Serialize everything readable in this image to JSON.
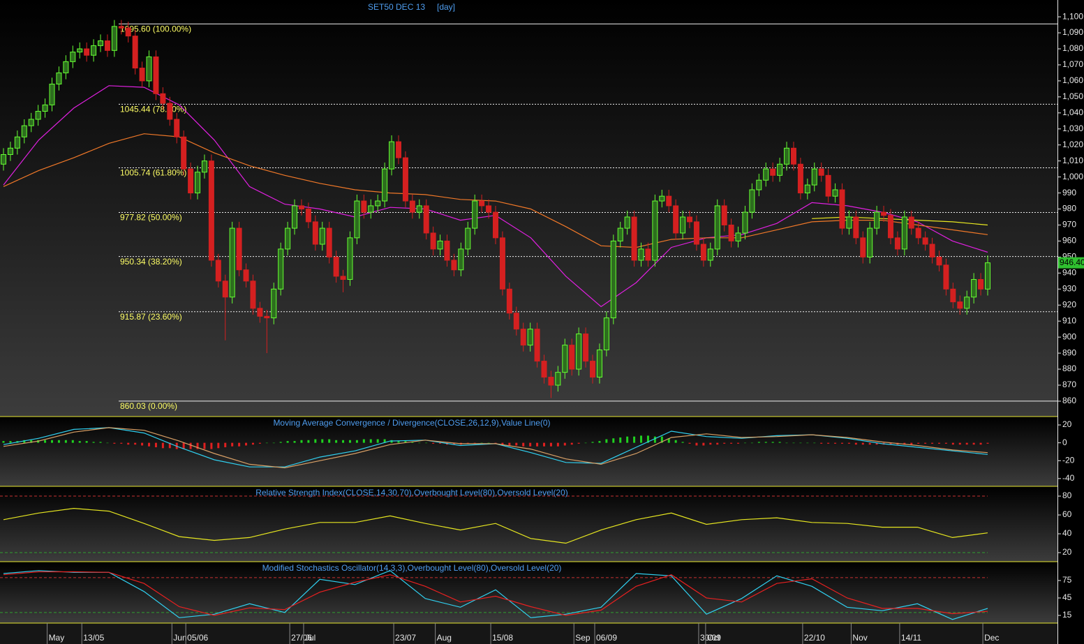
{
  "chart_data": [
    {
      "type": "candlestick",
      "title": "SET50 DEC 13",
      "interval": "[day]",
      "categories": [
        null,
        null,
        null,
        null,
        null,
        null,
        "May",
        null,
        null,
        null,
        null,
        "13/05",
        null,
        null,
        null,
        null,
        null,
        null,
        null,
        null,
        null,
        null,
        null,
        null,
        "Jun",
        null,
        "05/06",
        null,
        null,
        null,
        null,
        null,
        null,
        null,
        null,
        null,
        null,
        null,
        null,
        null,
        null,
        "27/06",
        null,
        "Jul",
        null,
        null,
        null,
        null,
        null,
        null,
        null,
        null,
        null,
        null,
        null,
        null,
        "23/07",
        null,
        null,
        null,
        null,
        null,
        "Aug",
        null,
        null,
        null,
        null,
        null,
        null,
        null,
        "15/08",
        null,
        null,
        null,
        null,
        null,
        null,
        null,
        null,
        null,
        null,
        null,
        "Sep",
        null,
        null,
        "06/09",
        null,
        null,
        null,
        null,
        null,
        null,
        null,
        null,
        null,
        null,
        null,
        null,
        null,
        null,
        "30/09",
        "Oct",
        null,
        null,
        null,
        null,
        null,
        null,
        null,
        null,
        null,
        null,
        null,
        null,
        null,
        "22/10",
        null,
        null,
        null,
        null,
        null,
        null,
        "Nov",
        null,
        null,
        null,
        null,
        null,
        null,
        "14/11",
        null,
        null,
        null,
        null,
        null,
        null,
        null,
        null,
        null,
        null,
        null,
        "Dec",
        null
      ],
      "open": [
        1008,
        1014,
        1018,
        1025,
        1032,
        1036,
        1041,
        1045,
        1058,
        1065,
        1072,
        1078,
        1080,
        1076,
        1082,
        1085,
        1079,
        1094,
        1093,
        1088,
        1068,
        1060,
        1075,
        1052,
        1046,
        1036,
        1025,
        1005,
        990,
        1003,
        1010,
        948,
        935,
        925,
        968,
        942,
        935,
        918,
        913,
        912,
        930,
        955,
        968,
        982,
        980,
        972,
        958,
        968,
        950,
        938,
        936,
        962,
        985,
        978,
        982,
        985,
        1005,
        1022,
        1012,
        985,
        978,
        982,
        965,
        955,
        960,
        948,
        942,
        955,
        968,
        985,
        982,
        978,
        962,
        930,
        915,
        905,
        895,
        905,
        885,
        875,
        870,
        878,
        895,
        880,
        902,
        885,
        875,
        892,
        912,
        960,
        968,
        975,
        948,
        955,
        948,
        985,
        988,
        982,
        965,
        975,
        972,
        958,
        948,
        955,
        982,
        970,
        960,
        965,
        978,
        992,
        998,
        1005,
        1001,
        1008,
        1018,
        1008,
        990,
        995,
        1005,
        1001,
        988,
        992,
        968,
        975,
        962,
        950,
        968,
        978,
        976,
        962,
        955,
        975,
        968,
        962,
        958,
        950,
        945,
        930,
        922,
        918,
        925,
        936,
        930
      ],
      "high": [
        1018,
        1022,
        1029,
        1036,
        1040,
        1045,
        1049,
        1062,
        1069,
        1076,
        1082,
        1084,
        1084,
        1086,
        1089,
        1089,
        1098,
        1098,
        1097,
        1092,
        1072,
        1079,
        1079,
        1056,
        1050,
        1040,
        1029,
        1009,
        1007,
        1014,
        1014,
        952,
        939,
        972,
        972,
        946,
        939,
        922,
        917,
        934,
        959,
        972,
        986,
        986,
        984,
        976,
        972,
        972,
        954,
        942,
        966,
        989,
        989,
        986,
        989,
        1009,
        1026,
        1026,
        1016,
        989,
        986,
        986,
        969,
        964,
        964,
        952,
        959,
        972,
        989,
        989,
        986,
        982,
        966,
        934,
        919,
        909,
        909,
        909,
        889,
        879,
        882,
        899,
        899,
        906,
        906,
        889,
        896,
        916,
        964,
        972,
        979,
        979,
        959,
        959,
        989,
        992,
        992,
        986,
        979,
        979,
        976,
        962,
        959,
        986,
        986,
        974,
        969,
        982,
        996,
        1002,
        1009,
        1009,
        1012,
        1022,
        1022,
        1012,
        999,
        1009,
        1009,
        1005,
        996,
        996,
        979,
        979,
        966,
        972,
        982,
        982,
        980,
        966,
        979,
        979,
        972,
        966,
        962,
        954,
        949,
        934,
        926,
        929,
        940,
        940,
        951
      ],
      "low": [
        1004,
        1010,
        1014,
        1021,
        1028,
        1032,
        1037,
        1041,
        1054,
        1061,
        1068,
        1074,
        1072,
        1072,
        1078,
        1075,
        1075,
        1089,
        1084,
        1064,
        1056,
        1056,
        1048,
        1042,
        1032,
        1021,
        1001,
        986,
        986,
        999,
        944,
        931,
        898,
        921,
        938,
        931,
        914,
        909,
        890,
        908,
        926,
        951,
        964,
        976,
        968,
        954,
        954,
        946,
        934,
        928,
        932,
        958,
        974,
        974,
        978,
        981,
        1001,
        1008,
        981,
        974,
        974,
        961,
        951,
        951,
        944,
        938,
        938,
        951,
        964,
        978,
        974,
        958,
        926,
        911,
        901,
        891,
        891,
        881,
        871,
        862,
        866,
        874,
        876,
        876,
        881,
        871,
        871,
        888,
        908,
        956,
        964,
        944,
        944,
        944,
        944,
        981,
        978,
        961,
        961,
        968,
        954,
        944,
        944,
        951,
        966,
        956,
        956,
        961,
        974,
        988,
        994,
        997,
        997,
        1004,
        1004,
        986,
        986,
        991,
        997,
        984,
        984,
        964,
        964,
        958,
        946,
        946,
        964,
        972,
        958,
        951,
        951,
        964,
        958,
        954,
        946,
        941,
        926,
        918,
        914,
        914,
        921,
        926,
        926
      ],
      "close": [
        1014,
        1018,
        1025,
        1032,
        1036,
        1041,
        1045,
        1058,
        1065,
        1072,
        1078,
        1080,
        1076,
        1082,
        1085,
        1079,
        1094,
        1093,
        1088,
        1068,
        1060,
        1075,
        1052,
        1046,
        1036,
        1025,
        1005,
        990,
        1003,
        1010,
        948,
        935,
        925,
        968,
        942,
        935,
        918,
        913,
        912,
        930,
        955,
        968,
        982,
        980,
        972,
        958,
        968,
        950,
        938,
        936,
        962,
        985,
        978,
        982,
        985,
        1005,
        1022,
        1012,
        985,
        978,
        982,
        965,
        955,
        960,
        948,
        942,
        955,
        968,
        985,
        982,
        978,
        962,
        930,
        915,
        905,
        895,
        905,
        885,
        875,
        870,
        878,
        895,
        880,
        902,
        885,
        875,
        892,
        912,
        960,
        968,
        975,
        948,
        955,
        948,
        985,
        988,
        982,
        965,
        975,
        972,
        958,
        948,
        955,
        982,
        970,
        960,
        965,
        978,
        992,
        998,
        1005,
        1001,
        1008,
        1018,
        1008,
        990,
        995,
        1005,
        1001,
        988,
        992,
        968,
        975,
        962,
        950,
        968,
        978,
        976,
        962,
        955,
        975,
        968,
        962,
        958,
        950,
        945,
        930,
        922,
        918,
        925,
        936,
        930,
        946.4
      ],
      "last_close_label": "946.40",
      "up_color": "#66ff33",
      "down_color": "#d42020",
      "overlays": [
        {
          "color": "#e020e0",
          "values": [
            995,
            1023,
            1043,
            1057,
            1056,
            1045,
            1023,
            994,
            983,
            980,
            975,
            981,
            980,
            973,
            976,
            962,
            938,
            919,
            934,
            956,
            962,
            964,
            971,
            984,
            982,
            978,
            972,
            960,
            953
          ]
        },
        {
          "color": "#f07828",
          "values": [
            994,
            1004,
            1012,
            1021,
            1027,
            1025,
            1015,
            1007,
            1001,
            996,
            992,
            990,
            989,
            986,
            985,
            980,
            969,
            957,
            956,
            961,
            962,
            962,
            967,
            972,
            973,
            973,
            970,
            967,
            964
          ]
        },
        {
          "color": "#e8e820",
          "values": [
            null,
            null,
            null,
            null,
            null,
            null,
            null,
            null,
            null,
            null,
            null,
            null,
            null,
            null,
            null,
            null,
            null,
            null,
            null,
            null,
            null,
            null,
            null,
            974,
            975,
            974,
            973,
            972,
            970
          ]
        }
      ],
      "fib_levels": [
        {
          "value": 1095.6,
          "label": "1095.60 (100.00%)"
        },
        {
          "value": 1045.44,
          "label": "1045.44 (78.60%)"
        },
        {
          "value": 1005.74,
          "label": "1005.74 (61.80%)"
        },
        {
          "value": 977.82,
          "label": "977.82 (50.00%)"
        },
        {
          "value": 950.34,
          "label": "950.34 (38.20%)"
        },
        {
          "value": 915.87,
          "label": "915.87 (23.60%)"
        },
        {
          "value": 860.03,
          "label": "860.03 (0.00%)"
        }
      ],
      "ylim": [
        850.4,
        1110.5
      ],
      "yticks": [
        860,
        870,
        880,
        890,
        900,
        910,
        920,
        930,
        940,
        950,
        960,
        970,
        980,
        990,
        {
          "value": 1000,
          "label": "1,000"
        },
        {
          "value": 1010,
          "label": "1,010"
        },
        {
          "value": 1020,
          "label": "1,020"
        },
        {
          "value": 1030,
          "label": "1,030"
        },
        {
          "value": 1040,
          "label": "1,040"
        },
        {
          "value": 1050,
          "label": "1,050"
        },
        {
          "value": 1060,
          "label": "1,060"
        },
        {
          "value": 1070,
          "label": "1,070"
        },
        {
          "value": 1080,
          "label": "1,080"
        },
        {
          "value": 1090,
          "label": "1,090"
        },
        {
          "value": 1100,
          "label": "1,100"
        }
      ]
    },
    {
      "type": "macd",
      "title": "Moving Average Convergence / Divergence(CLOSE,26,12,9),Value Line(0)",
      "histogram": [
        2,
        2,
        2,
        3,
        3,
        3,
        3,
        3,
        3,
        3,
        3,
        2,
        2,
        1,
        1,
        0,
        -1,
        -1,
        -2,
        -2,
        -3,
        -4,
        -5,
        -6,
        -6,
        -7,
        -7,
        -7,
        -7,
        -7,
        -7,
        -6,
        -5,
        -4,
        -4,
        -3,
        -2,
        -1,
        0,
        0,
        1,
        2,
        2,
        3,
        3,
        4,
        4,
        4,
        3,
        3,
        3,
        3,
        4,
        4,
        4,
        4,
        3,
        2,
        2,
        1,
        0,
        0,
        -1,
        -1,
        -2,
        -2,
        -2,
        -1,
        -1,
        0,
        0,
        -1,
        -2,
        -3,
        -3,
        -4,
        -4,
        -4,
        -4,
        -4,
        -4,
        -3,
        -2,
        -1,
        0,
        1,
        2,
        4,
        5,
        6,
        7,
        7,
        8,
        8,
        7,
        7,
        5,
        3,
        1,
        -1,
        -3,
        -3,
        -2,
        -2,
        -1,
        -1,
        -1,
        0,
        0,
        1,
        1,
        1,
        1,
        0,
        0,
        0,
        0,
        0,
        -1,
        -1,
        -1,
        -1,
        -1,
        -2,
        -2,
        -2,
        -2,
        -2,
        -2,
        -2,
        -2,
        -2,
        -1,
        -1,
        -1,
        -1,
        -1,
        -2,
        -2,
        -2,
        -2,
        -2,
        -1
      ],
      "up_color": "#20d020",
      "down_color": "#e02020",
      "series": [
        {
          "color": "#30d0f0",
          "values": [
            -2,
            5,
            15,
            17,
            11,
            -5,
            -19,
            -27,
            -27,
            -16,
            -9,
            2,
            3,
            -3,
            -1,
            -11,
            -22,
            -23,
            -5,
            13,
            7,
            5,
            8,
            9,
            5,
            -1,
            -5,
            -9,
            -13
          ]
        },
        {
          "color": "#d9a066",
          "values": [
            -4,
            2,
            12,
            17,
            14,
            2,
            -12,
            -24,
            -28,
            -20,
            -12,
            -2,
            3,
            -1,
            -1,
            -7,
            -18,
            -24,
            -12,
            6,
            10,
            6,
            7,
            9,
            6,
            1,
            -3,
            -8,
            -11
          ]
        }
      ],
      "ylim": [
        -48.7,
        29.4
      ],
      "yticks": [
        20,
        0,
        -20,
        -40
      ]
    },
    {
      "type": "line",
      "title": "Relative Strength Index(CLOSE,14,30,70),Overbought Level(80),Oversold Level(20)",
      "series": [
        {
          "color": "#e6e620",
          "values": [
            55,
            62,
            67,
            64,
            51,
            37,
            33,
            36,
            45,
            52,
            52,
            59,
            51,
            44,
            51,
            35,
            30,
            44,
            55,
            62,
            50,
            55,
            57,
            52,
            51,
            47,
            47,
            36,
            41
          ]
        }
      ],
      "levels": [
        {
          "value": 80,
          "color": "#c83030"
        },
        {
          "value": 20,
          "color": "#30a030"
        }
      ],
      "ylim": [
        10.4,
        90.4
      ],
      "yticks": [
        80,
        60,
        40,
        20
      ]
    },
    {
      "type": "line",
      "title": "Modified Stochastics Oscillator(14,3,3),Overbought Level(80),Oversold Level(20)",
      "series": [
        {
          "color": "#30d0f0",
          "values": [
            87,
            92,
            89,
            89,
            56,
            11,
            17,
            35,
            20,
            77,
            68,
            92,
            44,
            29,
            59,
            11,
            17,
            29,
            87,
            83,
            17,
            44,
            83,
            65,
            29,
            23,
            35,
            8,
            27
          ]
        },
        {
          "color": "#e82020",
          "values": [
            85,
            90,
            90,
            89,
            70,
            30,
            15,
            28,
            25,
            55,
            72,
            85,
            65,
            38,
            48,
            30,
            15,
            24,
            65,
            85,
            45,
            38,
            70,
            78,
            45,
            27,
            27,
            18,
            22
          ]
        }
      ],
      "levels": [
        {
          "value": 80,
          "color": "#c83030"
        },
        {
          "value": 20,
          "color": "#30a030"
        }
      ],
      "ylim": [
        1.8,
        107.4
      ],
      "yticks": [
        75,
        45,
        15
      ]
    }
  ]
}
